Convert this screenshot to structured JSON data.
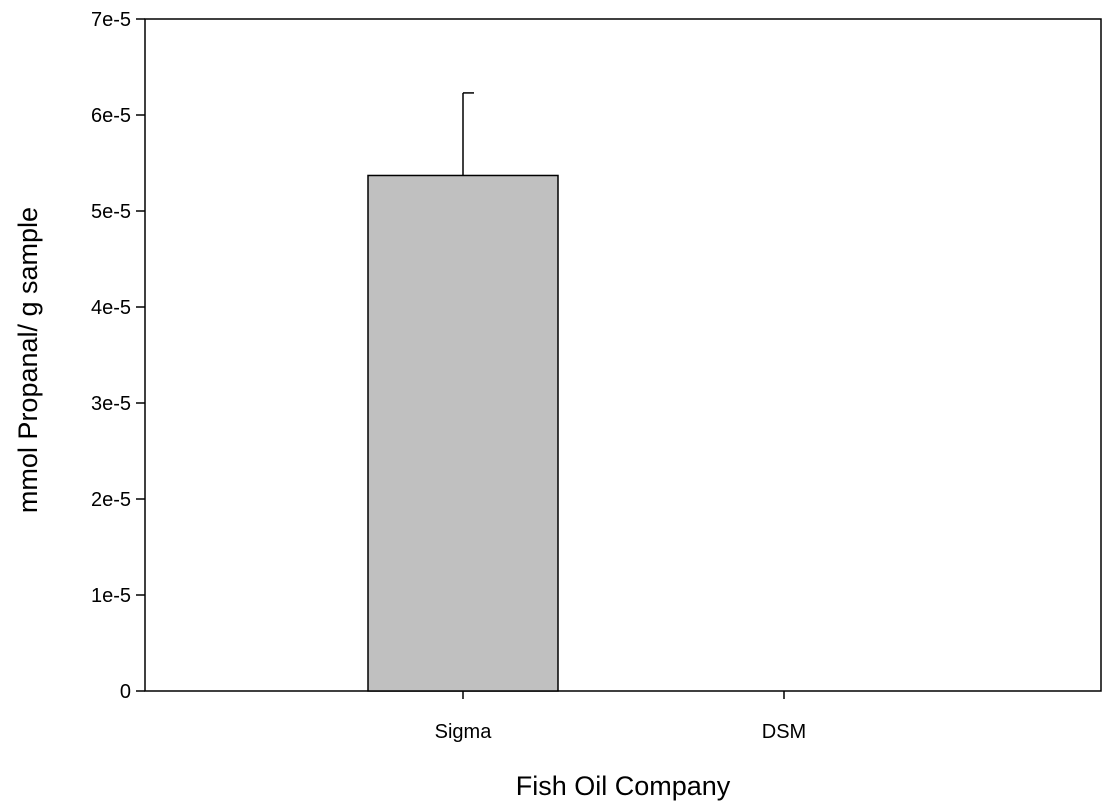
{
  "chart_data": {
    "type": "bar",
    "title": "",
    "xlabel": "Fish Oil Company",
    "ylabel": "mmol Propanal/ g sample",
    "categories": [
      "Sigma",
      "DSM"
    ],
    "values": [
      5.37e-05,
      0
    ],
    "error_bars": [
      8.6e-06,
      0
    ],
    "ylim": [
      0,
      7e-05
    ],
    "yticks": [
      0,
      1e-05,
      2e-05,
      3e-05,
      4e-05,
      5e-05,
      6e-05,
      7e-05
    ],
    "ytick_labels": [
      "0",
      "1e-5",
      "2e-5",
      "3e-5",
      "4e-5",
      "5e-5",
      "6e-5",
      "7e-5"
    ],
    "grid": false,
    "legend": "none",
    "colors": {
      "bar_fill": "#c0c0c0",
      "bar_stroke": "#000000",
      "axis": "#000000"
    }
  }
}
